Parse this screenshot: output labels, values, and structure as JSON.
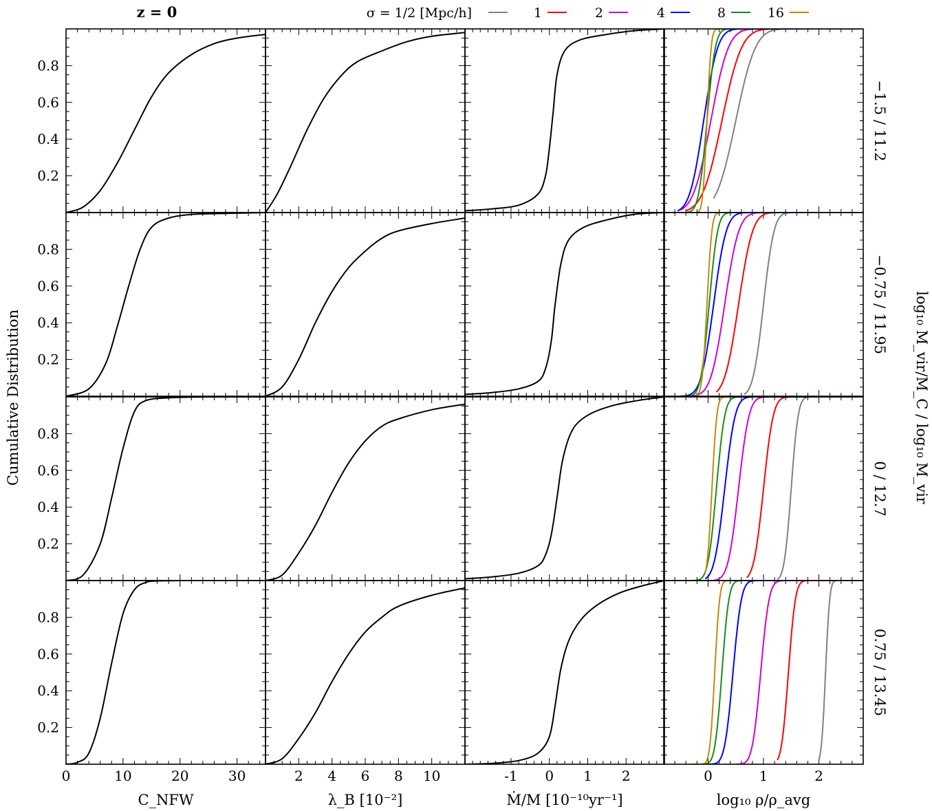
{
  "figure": {
    "title": "z = 0",
    "ylabel": "Cumulative Distribution",
    "right_label": "log₁₀ M_vir/M_C  /  log₁₀ M_vir",
    "legend_prefix": "σ = 1/2 [Mpc/h]",
    "legend": [
      {
        "label": "",
        "color": "#808080"
      },
      {
        "label": "1",
        "color": "#ff0000"
      },
      {
        "label": "2",
        "color": "#d000d0"
      },
      {
        "label": "4",
        "color": "#0000ff"
      },
      {
        "label": "8",
        "color": "#1a8a1a"
      },
      {
        "label": "16",
        "color": "#c08a10"
      }
    ],
    "row_labels": [
      "−1.5 / 11.2",
      "−0.75 / 11.95",
      "0 / 12.7",
      "0.75 / 13.45"
    ]
  },
  "chart_data": [
    {
      "type": "line",
      "column": "C_NFW",
      "xlabel": "C_NFW",
      "xlim": [
        0,
        35
      ],
      "ylim": [
        0,
        1
      ],
      "x_ticks": [
        0,
        10,
        20,
        30
      ],
      "y_ticks": [
        0.2,
        0.4,
        0.6,
        0.8
      ],
      "line_color": "#000000",
      "rows": [
        {
          "mass_bin": "−1.5 / 11.2",
          "x": [
            0,
            3,
            6,
            9,
            12,
            15,
            18,
            22,
            26,
            30,
            35
          ],
          "y": [
            0,
            0.03,
            0.12,
            0.27,
            0.45,
            0.63,
            0.76,
            0.86,
            0.92,
            0.95,
            0.97
          ]
        },
        {
          "mass_bin": "−0.75 / 11.95",
          "x": [
            0,
            4,
            7,
            9,
            11,
            13,
            15,
            18,
            22,
            28,
            35
          ],
          "y": [
            0,
            0.04,
            0.18,
            0.38,
            0.6,
            0.8,
            0.92,
            0.97,
            0.99,
            0.995,
            1.0
          ]
        },
        {
          "mass_bin": "0 / 12.7",
          "x": [
            0,
            3,
            6,
            8,
            10,
            12,
            14,
            18,
            25,
            35
          ],
          "y": [
            0,
            0.03,
            0.2,
            0.45,
            0.72,
            0.92,
            0.98,
            0.995,
            1.0,
            1.0
          ]
        },
        {
          "mass_bin": "0.75 / 13.45",
          "x": [
            0,
            2,
            4,
            6,
            8,
            10,
            12,
            14,
            16,
            20
          ],
          "y": [
            0,
            0.01,
            0.06,
            0.25,
            0.55,
            0.82,
            0.95,
            0.99,
            0.998,
            1.0
          ]
        }
      ]
    },
    {
      "type": "line",
      "column": "lambda_B",
      "xlabel": "λ_B [10⁻²]",
      "xlim": [
        0,
        12
      ],
      "ylim": [
        0,
        1
      ],
      "x_ticks": [
        2,
        4,
        6,
        8,
        10
      ],
      "y_ticks": [
        0.2,
        0.4,
        0.6,
        0.8
      ],
      "line_color": "#000000",
      "rows": [
        {
          "mass_bin": "−1.5 / 11.2",
          "x": [
            0,
            0.7,
            1.5,
            2.5,
            3.5,
            4.5,
            5.5,
            7,
            8.5,
            10,
            12
          ],
          "y": [
            0,
            0.1,
            0.25,
            0.45,
            0.62,
            0.74,
            0.82,
            0.88,
            0.93,
            0.96,
            0.98
          ]
        },
        {
          "mass_bin": "−0.75 / 11.95",
          "x": [
            0,
            1,
            2,
            3,
            4,
            5,
            6,
            7,
            8,
            10,
            12
          ],
          "y": [
            0,
            0.05,
            0.2,
            0.4,
            0.57,
            0.7,
            0.79,
            0.86,
            0.9,
            0.94,
            0.97
          ]
        },
        {
          "mass_bin": "0 / 12.7",
          "x": [
            0,
            1,
            2,
            3,
            4,
            5,
            6,
            7,
            8,
            10,
            12
          ],
          "y": [
            0,
            0.03,
            0.15,
            0.3,
            0.48,
            0.64,
            0.76,
            0.84,
            0.88,
            0.93,
            0.96
          ]
        },
        {
          "mass_bin": "0.75 / 13.45",
          "x": [
            0,
            1,
            2,
            3,
            4,
            5,
            6,
            7,
            8,
            10,
            12
          ],
          "y": [
            0,
            0.03,
            0.14,
            0.28,
            0.45,
            0.6,
            0.72,
            0.8,
            0.86,
            0.92,
            0.96
          ]
        }
      ]
    },
    {
      "type": "line",
      "column": "Mdot/M",
      "xlabel": "Ṁ/M [10⁻¹⁰yr⁻¹]",
      "xlim": [
        -2.2,
        3
      ],
      "ylim": [
        0,
        1
      ],
      "x_ticks": [
        -1,
        0,
        1,
        2
      ],
      "y_ticks": [
        0.2,
        0.4,
        0.6,
        0.8
      ],
      "line_color": "#000000",
      "rows": [
        {
          "mass_bin": "−1.5 / 11.2",
          "x": [
            -2.2,
            -1.5,
            -0.8,
            -0.3,
            -0.1,
            0,
            0.1,
            0.2,
            0.4,
            0.8,
            1.5,
            2.2,
            3
          ],
          "y": [
            0.01,
            0.02,
            0.04,
            0.1,
            0.2,
            0.35,
            0.55,
            0.75,
            0.88,
            0.94,
            0.97,
            0.99,
            1.0
          ]
        },
        {
          "mass_bin": "−0.75 / 11.95",
          "x": [
            -2.2,
            -1.5,
            -0.8,
            -0.3,
            -0.1,
            0.05,
            0.15,
            0.3,
            0.5,
            0.9,
            1.5,
            2.2,
            3
          ],
          "y": [
            0.01,
            0.02,
            0.04,
            0.08,
            0.15,
            0.3,
            0.5,
            0.72,
            0.85,
            0.92,
            0.96,
            0.99,
            1.0
          ]
        },
        {
          "mass_bin": "0 / 12.7",
          "x": [
            -2.2,
            -1.5,
            -0.8,
            -0.3,
            -0.1,
            0.05,
            0.2,
            0.35,
            0.6,
            1,
            1.6,
            2.3,
            3
          ],
          "y": [
            0.01,
            0.02,
            0.04,
            0.08,
            0.14,
            0.25,
            0.45,
            0.66,
            0.82,
            0.9,
            0.95,
            0.98,
            1.0
          ]
        },
        {
          "mass_bin": "0.75 / 13.45",
          "x": [
            -2.2,
            -1.5,
            -0.8,
            -0.3,
            0,
            0.15,
            0.3,
            0.5,
            0.8,
            1.2,
            1.8,
            2.4,
            3
          ],
          "y": [
            0.0,
            0.005,
            0.02,
            0.06,
            0.15,
            0.32,
            0.52,
            0.67,
            0.78,
            0.86,
            0.93,
            0.97,
            1.0
          ]
        }
      ]
    },
    {
      "type": "line",
      "column": "log10 rho/rho_avg",
      "xlabel": "log₁₀ ρ/ρ_avg",
      "xlim": [
        -0.8,
        2.8
      ],
      "ylim": [
        0,
        1
      ],
      "x_ticks": [
        0,
        1,
        2
      ],
      "y_ticks": [
        0.2,
        0.4,
        0.6,
        0.8
      ],
      "series_colors": [
        "#808080",
        "#ff0000",
        "#d000d0",
        "#0000ff",
        "#1a8a1a",
        "#c08a10"
      ],
      "rows": [
        {
          "mass_bin": "−1.5 / 11.2",
          "series": [
            {
              "mu": 0.5,
              "s": 0.28,
              "xmin": 0.1,
              "xmax": 2.75
            },
            {
              "mu": 0.25,
              "s": 0.28,
              "xmin": -0.4,
              "xmax": 2.7
            },
            {
              "mu": 0.05,
              "s": 0.25,
              "xmin": -0.5,
              "xmax": 2.5
            },
            {
              "mu": -0.08,
              "s": 0.2,
              "xmin": -0.55,
              "xmax": 1.85
            },
            {
              "mu": -0.02,
              "s": 0.12,
              "xmin": -0.4,
              "xmax": 0.75
            },
            {
              "mu": -0.02,
              "s": 0.06,
              "xmin": -0.25,
              "xmax": 0.3
            }
          ]
        },
        {
          "mass_bin": "−0.75 / 11.95",
          "series": [
            {
              "mu": 1.0,
              "s": 0.15,
              "xmin": 0.65,
              "xmax": 2.75
            },
            {
              "mu": 0.55,
              "s": 0.2,
              "xmin": 0.15,
              "xmax": 2.7
            },
            {
              "mu": 0.3,
              "s": 0.2,
              "xmin": -0.4,
              "xmax": 2.4
            },
            {
              "mu": 0.1,
              "s": 0.18,
              "xmin": -0.5,
              "xmax": 1.75
            },
            {
              "mu": 0.02,
              "s": 0.12,
              "xmin": -0.45,
              "xmax": 0.85
            },
            {
              "mu": -0.02,
              "s": 0.07,
              "xmin": -0.3,
              "xmax": 0.35
            }
          ]
        },
        {
          "mass_bin": "0 / 12.7",
          "series": [
            {
              "mu": 1.5,
              "s": 0.1,
              "xmin": 1.25,
              "xmax": 2.75
            },
            {
              "mu": 1.0,
              "s": 0.14,
              "xmin": 0.7,
              "xmax": 2.6
            },
            {
              "mu": 0.55,
              "s": 0.15,
              "xmin": 0.1,
              "xmax": 2.3
            },
            {
              "mu": 0.3,
              "s": 0.15,
              "xmin": -0.05,
              "xmax": 1.75
            },
            {
              "mu": 0.15,
              "s": 0.12,
              "xmin": -0.4,
              "xmax": 1.0
            },
            {
              "mu": 0.07,
              "s": 0.07,
              "xmin": -0.05,
              "xmax": 0.35
            }
          ]
        },
        {
          "mass_bin": "0.75 / 13.45",
          "series": [
            {
              "mu": 2.12,
              "s": 0.06,
              "xmin": 2.0,
              "xmax": 2.75
            },
            {
              "mu": 1.45,
              "s": 0.1,
              "xmin": 1.25,
              "xmax": 2.3
            },
            {
              "mu": 0.95,
              "s": 0.12,
              "xmin": 0.5,
              "xmax": 1.85
            },
            {
              "mu": 0.45,
              "s": 0.12,
              "xmin": 0.0,
              "xmax": 1.25
            },
            {
              "mu": 0.25,
              "s": 0.1,
              "xmin": -0.3,
              "xmax": 0.75
            },
            {
              "mu": 0.12,
              "s": 0.07,
              "xmin": -0.3,
              "xmax": 0.35
            }
          ]
        }
      ]
    }
  ]
}
